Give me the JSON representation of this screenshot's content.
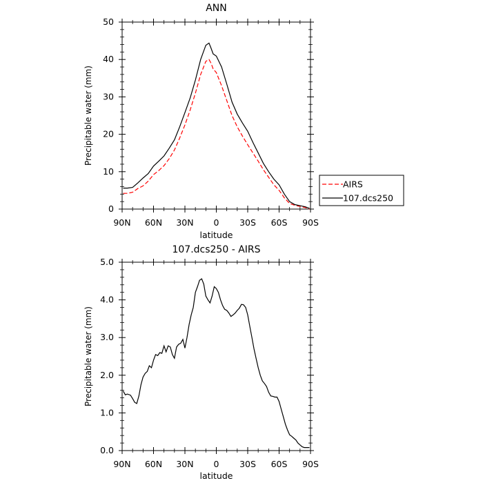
{
  "chart_data": [
    {
      "type": "line",
      "title": "ANN",
      "xlabel": "latitude",
      "ylabel": "Precipitable water (mm)",
      "xlim": [
        90,
        -90
      ],
      "ylim": [
        0,
        50
      ],
      "x_tick_values": [
        90,
        60,
        30,
        0,
        -30,
        -60,
        -90
      ],
      "x_tick_labels": [
        "90N",
        "60N",
        "30N",
        "0",
        "30S",
        "60S",
        "90S"
      ],
      "y_tick_values": [
        0,
        10,
        20,
        30,
        40,
        50
      ],
      "y_tick_labels": [
        "0",
        "10",
        "20",
        "30",
        "40",
        "50"
      ],
      "legend_position": "right-bottom-outside",
      "series": [
        {
          "name": "AIRS",
          "color": "#ff0000",
          "dash": "dashed",
          "x": [
            89,
            85,
            80,
            75,
            70,
            65,
            60,
            55,
            50,
            45,
            40,
            35,
            30,
            25,
            20,
            15,
            10,
            7,
            5,
            3,
            0,
            -5,
            -10,
            -15,
            -20,
            -25,
            -30,
            -35,
            -40,
            -45,
            -50,
            -55,
            -60,
            -65,
            -70,
            -75,
            -80,
            -85,
            -89
          ],
          "y": [
            4.2,
            4.2,
            4.5,
            5.5,
            6.2,
            7.5,
            9.2,
            10.3,
            11.6,
            13.5,
            15.8,
            19,
            22.5,
            26.5,
            31,
            36,
            39.5,
            40,
            39,
            37.5,
            36.5,
            33,
            29,
            25,
            22,
            19.5,
            17.2,
            15,
            12.8,
            10.5,
            8.5,
            6.5,
            5,
            3,
            1.5,
            1,
            0.7,
            0.4,
            0
          ]
        },
        {
          "name": "107.dcs250",
          "color": "#000000",
          "dash": "solid",
          "x": [
            89,
            85,
            80,
            75,
            70,
            65,
            60,
            55,
            50,
            45,
            40,
            35,
            30,
            25,
            20,
            15,
            10,
            7,
            5,
            3,
            0,
            -5,
            -10,
            -15,
            -20,
            -25,
            -30,
            -35,
            -40,
            -45,
            -50,
            -55,
            -60,
            -65,
            -70,
            -75,
            -80,
            -85,
            -89
          ],
          "y": [
            5.6,
            5.6,
            5.8,
            7,
            8.3,
            9.5,
            11.5,
            12.8,
            14.2,
            16.3,
            18.5,
            22,
            25.8,
            29.7,
            34.5,
            40,
            43.8,
            44.4,
            43,
            41.5,
            40.9,
            38,
            33.4,
            28.6,
            25.4,
            23,
            20.8,
            17.8,
            15,
            12.2,
            10,
            8,
            6.5,
            4,
            2,
            1.2,
            0.9,
            0.6,
            0.2
          ]
        }
      ]
    },
    {
      "type": "line",
      "title": "107.dcs250 - AIRS",
      "xlabel": "latitude",
      "ylabel": "Precipitable water (mm)",
      "xlim": [
        90,
        -90
      ],
      "ylim": [
        0,
        5
      ],
      "x_tick_values": [
        90,
        60,
        30,
        0,
        -30,
        -60,
        -90
      ],
      "x_tick_labels": [
        "90N",
        "60N",
        "30N",
        "0",
        "30S",
        "60S",
        "90S"
      ],
      "y_tick_values": [
        0,
        1,
        2,
        3,
        4,
        5
      ],
      "y_tick_labels": [
        "0.0",
        "1.0",
        "2.0",
        "3.0",
        "4.0",
        "5.0"
      ],
      "series": [
        {
          "color": "#000000",
          "dash": "solid",
          "x": [
            89,
            87,
            85,
            82,
            80,
            78,
            76,
            74,
            72,
            70,
            68,
            66,
            64,
            62,
            60,
            58,
            56,
            54,
            52,
            50,
            48,
            46,
            44,
            42,
            40,
            38,
            36,
            34,
            32,
            30,
            28,
            26,
            24,
            22,
            20,
            18,
            16,
            14,
            12,
            10,
            8,
            6,
            4,
            2,
            0,
            -2,
            -4,
            -6,
            -8,
            -10,
            -12,
            -14,
            -16,
            -18,
            -20,
            -22,
            -24,
            -26,
            -28,
            -30,
            -32,
            -34,
            -36,
            -38,
            -40,
            -42,
            -44,
            -46,
            -48,
            -50,
            -52,
            -54,
            -56,
            -58,
            -60,
            -62,
            -64,
            -66,
            -68,
            -70,
            -72,
            -74,
            -76,
            -78,
            -80,
            -82,
            -84,
            -86,
            -88,
            -89
          ],
          "y": [
            1.58,
            1.48,
            1.5,
            1.47,
            1.38,
            1.28,
            1.25,
            1.45,
            1.75,
            1.95,
            2.05,
            2.1,
            2.25,
            2.2,
            2.4,
            2.55,
            2.52,
            2.6,
            2.58,
            2.78,
            2.62,
            2.78,
            2.75,
            2.55,
            2.45,
            2.75,
            2.82,
            2.85,
            2.95,
            2.72,
            3.0,
            3.35,
            3.6,
            3.8,
            4.2,
            4.35,
            4.52,
            4.56,
            4.42,
            4.1,
            4.0,
            3.92,
            4.1,
            4.35,
            4.3,
            4.2,
            4.0,
            3.85,
            3.75,
            3.72,
            3.65,
            3.56,
            3.6,
            3.65,
            3.72,
            3.78,
            3.88,
            3.87,
            3.8,
            3.6,
            3.3,
            3.0,
            2.7,
            2.45,
            2.2,
            2.0,
            1.85,
            1.78,
            1.7,
            1.55,
            1.45,
            1.44,
            1.42,
            1.42,
            1.3,
            1.1,
            0.9,
            0.7,
            0.55,
            0.42,
            0.38,
            0.33,
            0.28,
            0.2,
            0.15,
            0.1,
            0.08,
            0.08,
            0.08,
            0.08
          ]
        }
      ]
    }
  ]
}
